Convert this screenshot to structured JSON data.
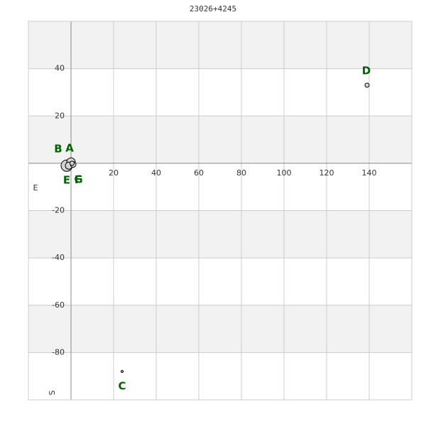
{
  "chart_data": {
    "type": "scatter",
    "title": "23026+4245",
    "xlim": [
      -20,
      160
    ],
    "ylim": [
      -100,
      60
    ],
    "xticks": [
      20,
      40,
      60,
      80,
      100,
      120,
      140
    ],
    "yticks": [
      -80,
      -60,
      -40,
      -20,
      20,
      40
    ],
    "grid": true,
    "direction_labels": [
      "E",
      "S"
    ],
    "series": [
      {
        "name": null,
        "color": "#d3d3d3",
        "labels": [
          "A",
          "B",
          "C",
          "D",
          "E",
          "F",
          "G"
        ],
        "x": [
          0,
          -2,
          24,
          139,
          -1,
          1,
          0.5
        ],
        "values": [
          0.5,
          -1,
          -88,
          33,
          -1,
          -0.5,
          0
        ],
        "size": [
          6,
          8,
          1.5,
          3,
          5,
          4,
          3
        ]
      }
    ]
  }
}
